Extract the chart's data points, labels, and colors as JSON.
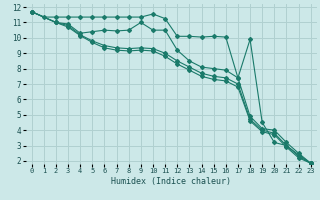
{
  "title": "",
  "xlabel": "Humidex (Indice chaleur)",
  "bg_color": "#cce8e8",
  "grid_color": "#b0d0d0",
  "line_color": "#1a7a6a",
  "xlim": [
    -0.5,
    23.5
  ],
  "ylim": [
    1.8,
    12.2
  ],
  "yticks": [
    2,
    3,
    4,
    5,
    6,
    7,
    8,
    9,
    10,
    11,
    12
  ],
  "xticks": [
    0,
    1,
    2,
    3,
    4,
    5,
    6,
    7,
    8,
    9,
    10,
    11,
    12,
    13,
    14,
    15,
    16,
    17,
    18,
    19,
    20,
    21,
    22,
    23
  ],
  "line1_x": [
    0,
    1,
    2,
    3,
    4,
    5,
    6,
    7,
    8,
    9,
    10,
    11,
    12,
    13,
    14,
    15,
    16,
    17,
    18,
    19,
    20,
    21,
    22,
    23
  ],
  "line1_y": [
    11.7,
    11.35,
    11.35,
    11.35,
    11.35,
    11.35,
    11.35,
    11.35,
    11.35,
    11.35,
    11.55,
    11.25,
    10.1,
    10.1,
    10.05,
    10.1,
    10.05,
    7.4,
    9.9,
    4.5,
    3.2,
    3.0,
    2.4,
    1.85
  ],
  "line2_x": [
    0,
    2,
    3,
    4,
    5,
    6,
    7,
    8,
    9,
    10,
    11,
    12,
    13,
    14,
    15,
    16,
    17,
    18,
    19,
    20,
    21,
    22,
    23
  ],
  "line2_y": [
    11.7,
    11.0,
    10.9,
    10.3,
    10.4,
    10.5,
    10.45,
    10.5,
    11.0,
    10.5,
    10.5,
    9.2,
    8.5,
    8.1,
    8.0,
    7.9,
    7.4,
    4.9,
    4.1,
    4.0,
    3.2,
    2.5,
    1.85
  ],
  "line3_x": [
    0,
    2,
    3,
    4,
    5,
    6,
    7,
    8,
    9,
    10,
    11,
    12,
    13,
    14,
    15,
    16,
    17,
    18,
    19,
    20,
    21,
    22,
    23
  ],
  "line3_y": [
    11.7,
    11.0,
    10.8,
    10.2,
    9.8,
    9.5,
    9.35,
    9.3,
    9.35,
    9.3,
    9.0,
    8.5,
    8.1,
    7.7,
    7.5,
    7.4,
    7.0,
    4.7,
    4.0,
    3.8,
    3.0,
    2.3,
    1.85
  ],
  "line4_x": [
    0,
    2,
    3,
    4,
    5,
    6,
    7,
    8,
    9,
    10,
    11,
    12,
    13,
    14,
    15,
    16,
    17,
    18,
    19,
    20,
    21,
    22,
    23
  ],
  "line4_y": [
    11.7,
    11.0,
    10.7,
    10.15,
    9.7,
    9.35,
    9.2,
    9.15,
    9.2,
    9.15,
    8.8,
    8.3,
    7.9,
    7.5,
    7.3,
    7.2,
    6.8,
    4.6,
    3.9,
    3.7,
    2.9,
    2.2,
    1.85
  ]
}
